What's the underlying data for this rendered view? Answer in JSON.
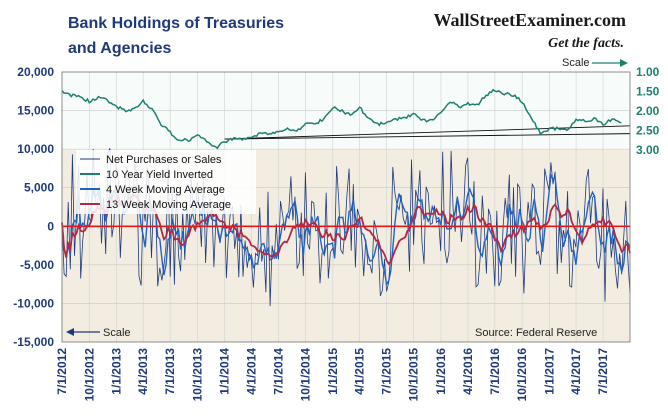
{
  "chart_data": {
    "type": "line",
    "title_line1": "Bank Holdings of Treasuries",
    "title_line2": "and Agencies",
    "brand": "WallStreetExaminer.com",
    "tagline": "Get the facts.",
    "source": "Source: Federal Reserve",
    "left_scale_label": "Scale",
    "right_scale_label": "Scale",
    "colors": {
      "net": "#1f3a7a",
      "yield": "#1e8070",
      "ma4": "#1f63c6",
      "ma13": "#b02a47",
      "zero": "#e31a1c",
      "upper_bg": "#f7fbfa",
      "lower_bg": "#f2ede0"
    },
    "left_axis": {
      "ylim": [
        -15000,
        20000
      ],
      "ticks": [
        "20,000",
        "15,000",
        "10,000",
        "5,000",
        "0",
        "-5,000",
        "-10,000",
        "-15,000"
      ],
      "values": [
        20000,
        15000,
        10000,
        5000,
        0,
        -5000,
        -10000,
        -15000
      ]
    },
    "right_axis": {
      "inverted": true,
      "ylim": [
        1.0,
        3.0
      ],
      "ticks": [
        "1.00",
        "1.50",
        "2.00",
        "2.50",
        "3.00"
      ],
      "values": [
        1.0,
        1.5,
        2.0,
        2.5,
        3.0
      ]
    },
    "x_axis": {
      "range": [
        "2012-07-01",
        "2017-09-30"
      ],
      "ticks": [
        "7/1/2012",
        "10/1/2012",
        "1/1/2013",
        "4/1/2013",
        "7/1/2013",
        "10/1/2013",
        "1/1/2014",
        "4/1/2014",
        "7/1/2014",
        "10/1/2014",
        "1/1/2015",
        "4/1/2015",
        "7/1/2015",
        "10/1/2015",
        "1/1/2016",
        "4/1/2016",
        "7/1/2016",
        "10/1/2016",
        "1/1/2017",
        "4/1/2017",
        "7/1/2017"
      ],
      "tick_dates": [
        "2012-07-01",
        "2012-10-01",
        "2013-01-01",
        "2013-04-01",
        "2013-07-01",
        "2013-10-01",
        "2014-01-01",
        "2014-04-01",
        "2014-07-01",
        "2014-10-01",
        "2015-01-01",
        "2015-04-01",
        "2015-07-01",
        "2015-10-01",
        "2016-01-01",
        "2016-04-01",
        "2016-07-01",
        "2016-10-01",
        "2017-01-01",
        "2017-04-01",
        "2017-07-01"
      ]
    },
    "series": [
      {
        "name": "Net Purchases or Sales",
        "axis": "left"
      },
      {
        "name": "10 Year Yield Inverted",
        "axis": "right"
      },
      {
        "name": "4 Week Moving Average",
        "axis": "left"
      },
      {
        "name": "13 Week Moving Average",
        "axis": "left"
      }
    ],
    "yield_points": {
      "x": [
        "2012-07-01",
        "2012-08-01",
        "2012-09-01",
        "2012-10-01",
        "2012-11-01",
        "2012-12-01",
        "2013-01-01",
        "2013-02-01",
        "2013-03-01",
        "2013-04-01",
        "2013-05-01",
        "2013-06-01",
        "2013-07-01",
        "2013-08-01",
        "2013-09-01",
        "2013-10-01",
        "2013-11-01",
        "2013-12-01",
        "2014-01-01",
        "2014-02-01",
        "2014-03-01",
        "2014-04-01",
        "2014-05-01",
        "2014-06-01",
        "2014-07-01",
        "2014-08-01",
        "2014-09-01",
        "2014-10-01",
        "2014-11-01",
        "2014-12-01",
        "2015-01-01",
        "2015-02-01",
        "2015-03-01",
        "2015-04-01",
        "2015-05-01",
        "2015-06-01",
        "2015-07-01",
        "2015-08-01",
        "2015-09-01",
        "2015-10-01",
        "2015-11-01",
        "2015-12-01",
        "2016-01-01",
        "2016-02-01",
        "2016-03-01",
        "2016-04-01",
        "2016-05-01",
        "2016-06-01",
        "2016-07-01",
        "2016-08-01",
        "2016-09-01",
        "2016-10-01",
        "2016-11-01",
        "2016-12-01",
        "2017-01-01",
        "2017-02-01",
        "2017-03-01",
        "2017-04-01",
        "2017-05-01",
        "2017-06-01",
        "2017-07-01",
        "2017-08-01",
        "2017-09-01"
      ],
      "y": [
        1.5,
        1.6,
        1.65,
        1.75,
        1.65,
        1.72,
        1.9,
        1.98,
        1.95,
        1.75,
        1.95,
        2.35,
        2.55,
        2.75,
        2.75,
        2.6,
        2.75,
        2.95,
        2.8,
        2.7,
        2.72,
        2.7,
        2.55,
        2.6,
        2.55,
        2.45,
        2.55,
        2.3,
        2.35,
        2.2,
        1.9,
        2.0,
        2.1,
        1.9,
        2.2,
        2.35,
        2.3,
        2.2,
        2.2,
        2.05,
        2.25,
        2.25,
        2.05,
        1.75,
        1.9,
        1.8,
        1.85,
        1.6,
        1.45,
        1.55,
        1.6,
        1.75,
        2.2,
        2.55,
        2.45,
        2.45,
        2.5,
        2.25,
        2.25,
        2.2,
        2.35,
        2.2,
        2.3
      ]
    },
    "trendlines": [
      {
        "from": [
          "2014-01-01",
          2.72
        ],
        "to": [
          "2017-09-30",
          2.38
        ]
      },
      {
        "from": [
          "2014-01-01",
          2.72
        ],
        "to": [
          "2017-09-30",
          2.58
        ]
      }
    ]
  },
  "legend": {
    "items": [
      "Net Purchases or Sales",
      "10 Year Yield Inverted",
      "4 Week Moving Average",
      "13 Week Moving Average"
    ]
  }
}
